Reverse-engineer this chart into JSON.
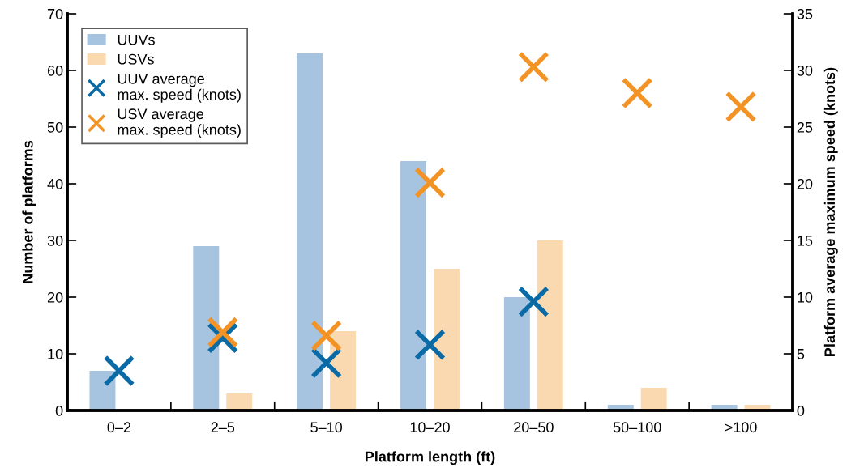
{
  "chart_data": {
    "type": "bar",
    "xlabel": "Platform length (ft)",
    "ylabel": "Number of platforms",
    "y2label": "Platform average maximum speed (knots)",
    "categories": [
      "0–2",
      "2–5",
      "5–10",
      "10–20",
      "20–50",
      "50–100",
      ">100"
    ],
    "series": [
      {
        "name": "UUVs",
        "color": "#a6c3e0",
        "values": [
          7,
          29,
          63,
          44,
          20,
          1,
          1
        ]
      },
      {
        "name": "USVs",
        "color": "#fbd9b0",
        "values": [
          0,
          3,
          14,
          25,
          30,
          4,
          1
        ]
      },
      {
        "name": "UUV average\nmax. speed (knots)",
        "type": "scatter",
        "axis": "y2",
        "marker": "cross",
        "color": "#0a6aa6",
        "values": [
          3.5,
          6.4,
          4.2,
          5.8,
          9.6,
          null,
          null
        ]
      },
      {
        "name": "USV average\nmax. speed (knots)",
        "type": "scatter",
        "axis": "y2",
        "marker": "cross",
        "color": "#f39325",
        "values": [
          null,
          6.9,
          6.6,
          20.1,
          30.3,
          28,
          26.8
        ]
      }
    ],
    "ylim": [
      0,
      70
    ],
    "yticks": [
      0,
      10,
      20,
      30,
      40,
      50,
      60,
      70
    ],
    "y2lim": [
      0,
      35
    ],
    "y2ticks": [
      0,
      5,
      10,
      15,
      20,
      25,
      30,
      35
    ],
    "legend": "top left"
  }
}
